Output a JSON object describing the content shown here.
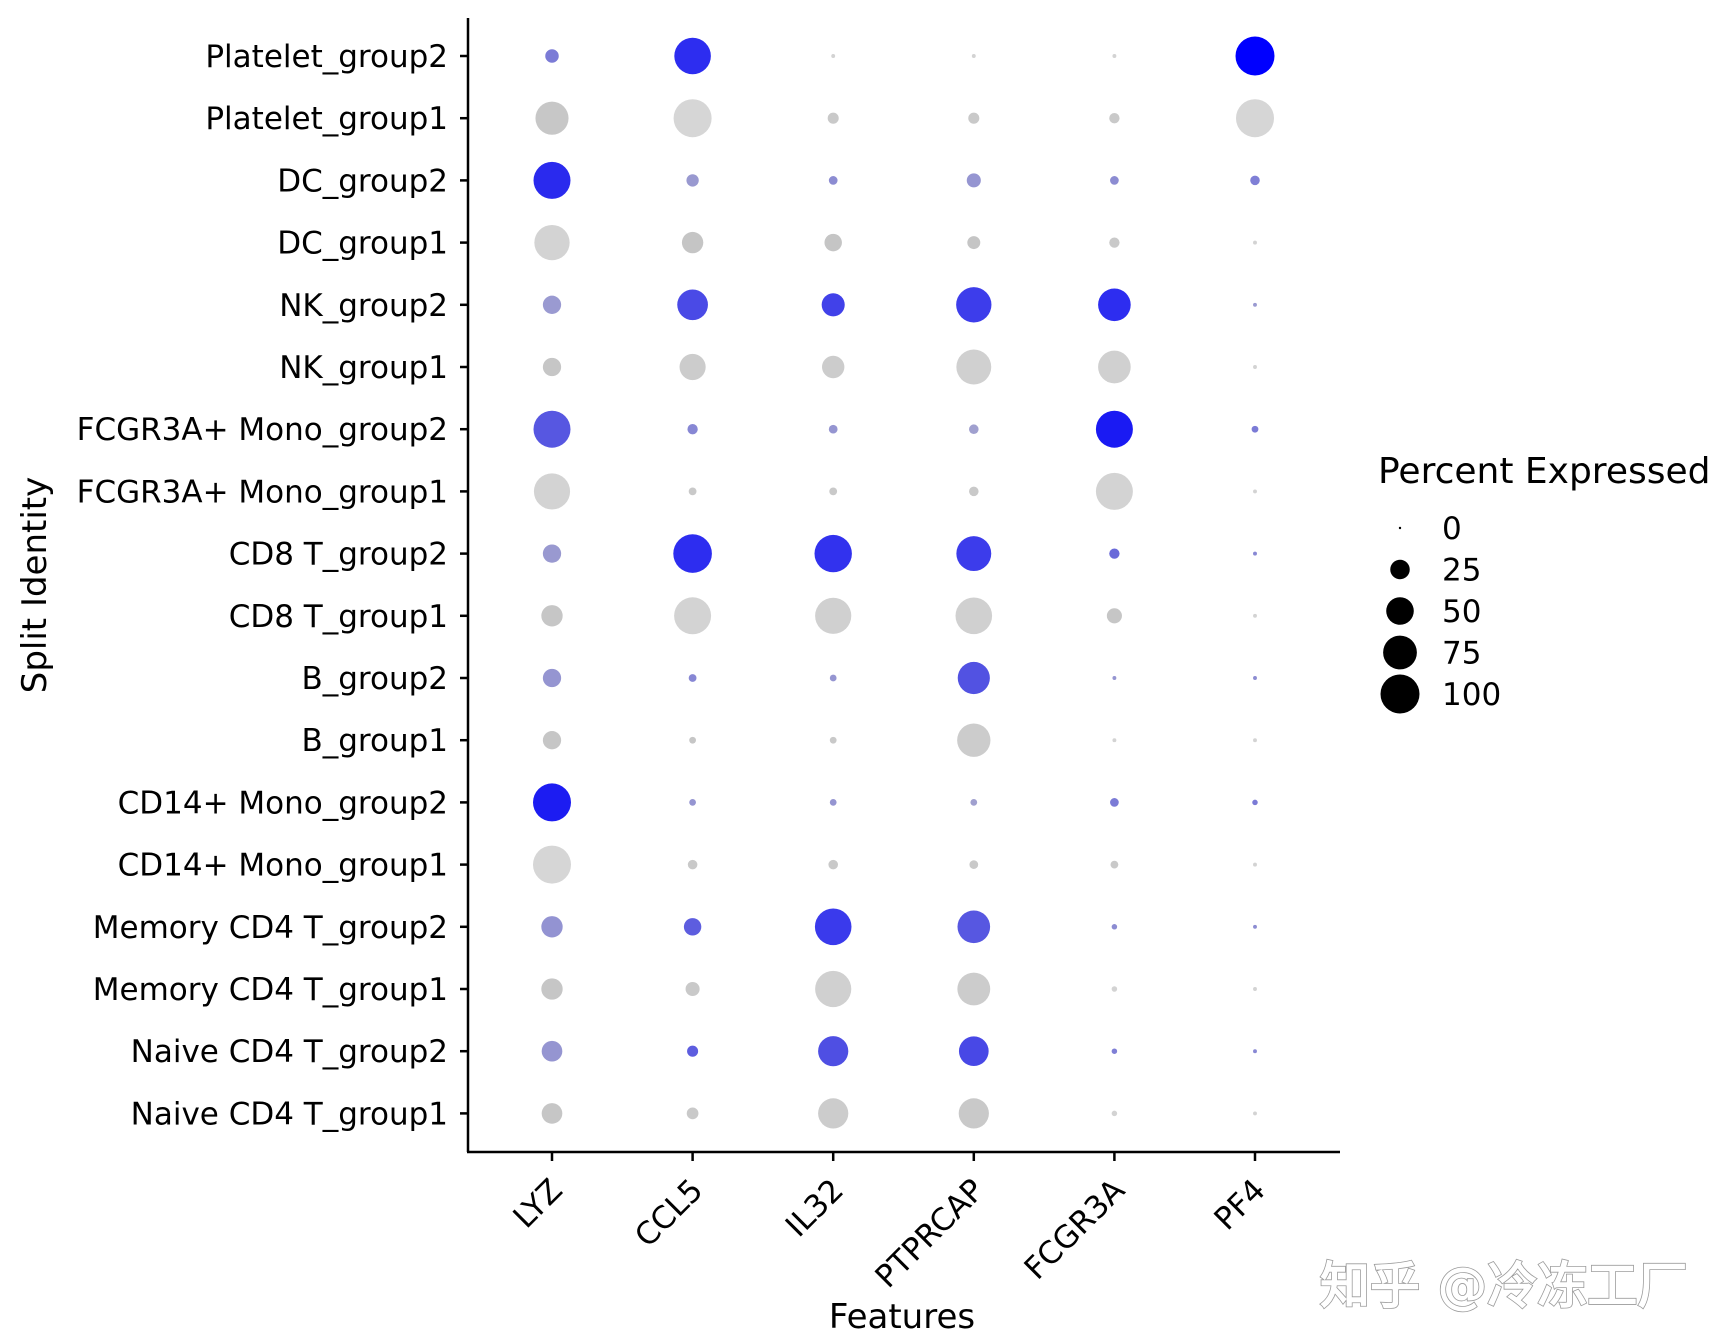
{
  "chart_data": {
    "type": "dotplot",
    "xlabel": "Features",
    "ylabel": "Split Identity",
    "features": [
      "LYZ",
      "CCL5",
      "IL32",
      "PTPRCAP",
      "FCGR3A",
      "PF4"
    ],
    "identities": [
      "Platelet_group2",
      "Platelet_group1",
      "DC_group2",
      "DC_group1",
      "NK_group2",
      "NK_group1",
      "FCGR3A+ Mono_group2",
      "FCGR3A+ Mono_group1",
      "CD8 T_group2",
      "CD8 T_group1",
      "B_group2",
      "B_group1",
      "CD14+ Mono_group2",
      "CD14+ Mono_group1",
      "Memory CD4 T_group2",
      "Memory CD4 T_group1",
      "Naive CD4 T_group2",
      "Naive CD4 T_group1"
    ],
    "percent_expressed": [
      [
        12,
        88,
        1,
        1,
        1,
        100
      ],
      [
        72,
        95,
        8,
        8,
        7,
        95
      ],
      [
        90,
        10,
        5,
        13,
        5,
        6
      ],
      [
        82,
        30,
        20,
        11,
        7,
        1
      ],
      [
        22,
        62,
        35,
        82,
        70,
        1
      ],
      [
        22,
        45,
        33,
        80,
        70,
        1
      ],
      [
        90,
        7,
        5,
        6,
        90,
        3
      ],
      [
        86,
        4,
        4,
        6,
        90,
        1
      ],
      [
        22,
        98,
        92,
        80,
        7,
        1
      ],
      [
        30,
        90,
        86,
        88,
        15,
        1
      ],
      [
        22,
        4,
        3,
        68,
        1,
        1
      ],
      [
        22,
        3,
        3,
        73,
        1,
        1
      ],
      [
        95,
        3,
        3,
        3,
        5,
        2
      ],
      [
        95,
        6,
        6,
        5,
        4,
        1
      ],
      [
        30,
        20,
        88,
        70,
        2,
        1
      ],
      [
        30,
        13,
        86,
        71,
        2,
        1
      ],
      [
        28,
        8,
        60,
        58,
        2,
        1
      ],
      [
        28,
        9,
        60,
        60,
        2,
        1
      ]
    ],
    "dot_colors": [
      [
        "#7b7bd6",
        "#2d2df0",
        "#d3d3d3",
        "#d3d3d3",
        "#d3d3d3",
        "#0000ff"
      ],
      [
        "#c7c7c7",
        "#d6d6d6",
        "#c9c9c9",
        "#c9c9c9",
        "#c9c9c9",
        "#d6d6d6"
      ],
      [
        "#2a2aee",
        "#9999d0",
        "#8c8cd2",
        "#9595d1",
        "#8c8cd2",
        "#7f7fd6"
      ],
      [
        "#d3d3d3",
        "#c5c5c5",
        "#c5c5c5",
        "#c5c5c5",
        "#c9c9c9",
        "#d3d3d3"
      ],
      [
        "#9a9ad1",
        "#4a4ae6",
        "#4141e9",
        "#3d3deb",
        "#2d2df0",
        "#9a9ad1"
      ],
      [
        "#c6c6c6",
        "#cccccc",
        "#cccccc",
        "#d0d0d0",
        "#d0d0d0",
        "#d3d3d3"
      ],
      [
        "#5757e1",
        "#8787d4",
        "#9595d1",
        "#a0a0cf",
        "#1a1af3",
        "#7b7bd6"
      ],
      [
        "#d3d3d3",
        "#c9c9c9",
        "#c9c9c9",
        "#c9c9c9",
        "#d3d3d3",
        "#d3d3d3"
      ],
      [
        "#9999d0",
        "#2d2df0",
        "#3232ee",
        "#3c3ceb",
        "#6a6ad9",
        "#8888d4"
      ],
      [
        "#c6c6c6",
        "#d3d3d3",
        "#d0d0d0",
        "#d0d0d0",
        "#c6c6c6",
        "#d3d3d3"
      ],
      [
        "#9595d1",
        "#8787d4",
        "#9595d1",
        "#5252e2",
        "#9595d1",
        "#8c8cd2"
      ],
      [
        "#c6c6c6",
        "#c6c6c6",
        "#c9c9c9",
        "#cccccc",
        "#d3d3d3",
        "#d3d3d3"
      ],
      [
        "#1c1cf2",
        "#9595d1",
        "#9595d1",
        "#a0a0cf",
        "#7b7bd6",
        "#7b7bd6"
      ],
      [
        "#d6d6d6",
        "#c9c9c9",
        "#c9c9c9",
        "#c9c9c9",
        "#c9c9c9",
        "#d3d3d3"
      ],
      [
        "#9393d2",
        "#5d5ddf",
        "#3a3aec",
        "#5757e1",
        "#8c8cd2",
        "#8c8cd2"
      ],
      [
        "#c6c6c6",
        "#c9c9c9",
        "#d0d0d0",
        "#cccccc",
        "#d3d3d3",
        "#d3d3d3"
      ],
      [
        "#9595d1",
        "#5d5ddf",
        "#4f4fe3",
        "#4848e6",
        "#7f7fd6",
        "#8888d4"
      ],
      [
        "#c6c6c6",
        "#c9c9c9",
        "#cccccc",
        "#c9c9c9",
        "#d3d3d3",
        "#d3d3d3"
      ]
    ],
    "legend": {
      "title": "Percent Expressed",
      "values": [
        0,
        25,
        50,
        75,
        100
      ],
      "labels": [
        "0",
        "25",
        "50",
        "75",
        "100"
      ],
      "dot_color": "#000000"
    }
  },
  "watermark": "知乎 @冷冻工厂"
}
